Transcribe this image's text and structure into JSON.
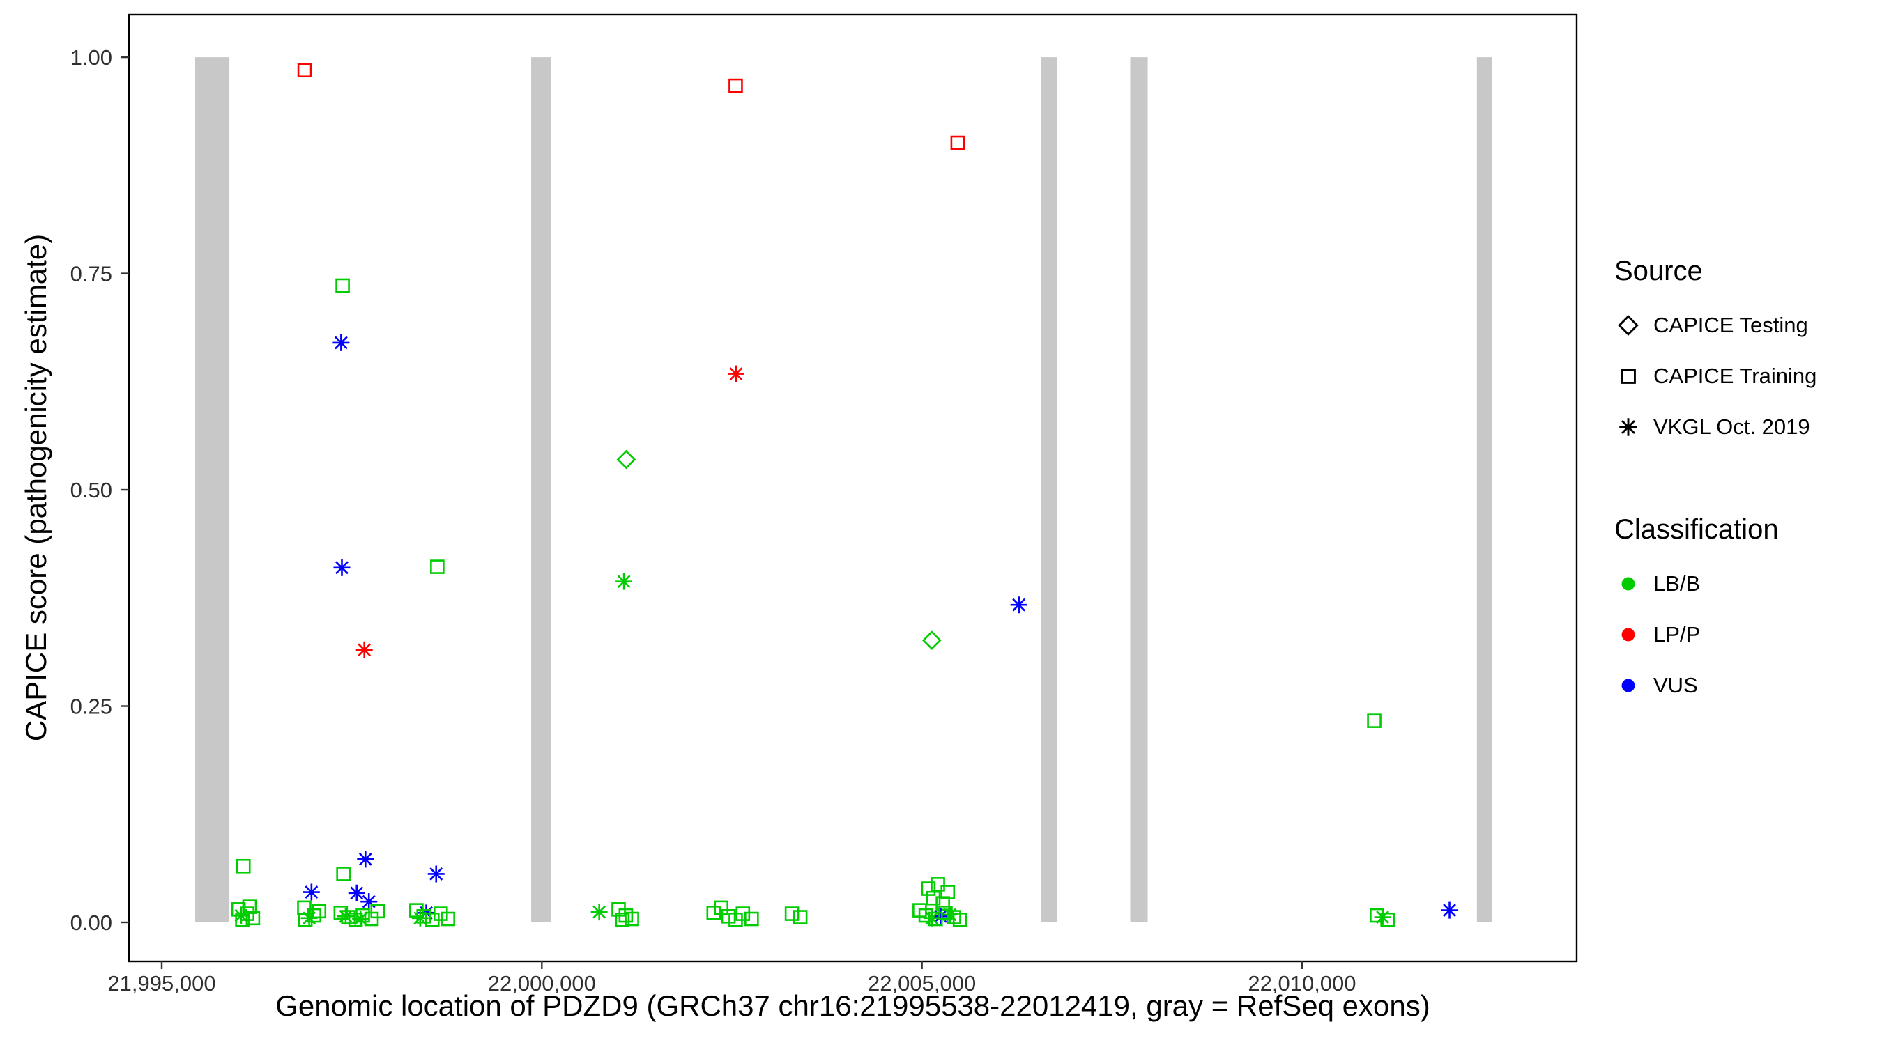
{
  "chart_data": {
    "type": "scatter",
    "title": "",
    "xlabel": "Genomic location of PDZD9 (GRCh37 chr16:21995538-22012419, gray = RefSeq exons)",
    "ylabel": "CAPICE score (pathogenicity estimate)",
    "xlim": [
      21994569,
      22013613
    ],
    "ylim": [
      -0.0451,
      1.0492
    ],
    "grid": false,
    "legend_position": "right",
    "exon_color": "#C8C8C8",
    "x_ticks": [
      {
        "value": 21995000,
        "label": "21,995,000"
      },
      {
        "value": 22000000,
        "label": "22,000,000"
      },
      {
        "value": 22005000,
        "label": "22,005,000"
      },
      {
        "value": 22010000,
        "label": "22,010,000"
      }
    ],
    "y_ticks": [
      {
        "value": 0.0,
        "label": "0.00"
      },
      {
        "value": 0.25,
        "label": "0.25"
      },
      {
        "value": 0.5,
        "label": "0.50"
      },
      {
        "value": 0.75,
        "label": "0.75"
      },
      {
        "value": 1.0,
        "label": "1.00"
      }
    ],
    "exons": [
      {
        "start": 21995440,
        "end": 21995890
      },
      {
        "start": 21999860,
        "end": 22000120
      },
      {
        "start": 22006570,
        "end": 22006780
      },
      {
        "start": 22007740,
        "end": 22007970
      },
      {
        "start": 22012300,
        "end": 22012500
      }
    ],
    "legend": {
      "source_title": "Source",
      "classification_title": "Classification"
    },
    "sources": [
      {
        "id": "testing",
        "label": "CAPICE Testing",
        "shape": "diamond"
      },
      {
        "id": "training",
        "label": "CAPICE Training",
        "shape": "square"
      },
      {
        "id": "vkgl",
        "label": "VKGL Oct. 2019",
        "shape": "asterisk"
      }
    ],
    "classifications": [
      {
        "id": "LB/B",
        "label": "LB/B",
        "color": "#00CC00"
      },
      {
        "id": "LP/P",
        "label": "LP/P",
        "color": "#FF0000"
      },
      {
        "id": "VUS",
        "label": "VUS",
        "color": "#0000FF"
      }
    ],
    "points": [
      {
        "x": 21996880,
        "y": 0.985,
        "source": "training",
        "class": "LP/P"
      },
      {
        "x": 22002550,
        "y": 0.967,
        "source": "training",
        "class": "LP/P"
      },
      {
        "x": 22005470,
        "y": 0.901,
        "source": "training",
        "class": "LP/P"
      },
      {
        "x": 21997380,
        "y": 0.736,
        "source": "training",
        "class": "LB/B"
      },
      {
        "x": 21997360,
        "y": 0.67,
        "source": "vkgl",
        "class": "VUS"
      },
      {
        "x": 22002555,
        "y": 0.634,
        "source": "vkgl",
        "class": "LP/P"
      },
      {
        "x": 22001110,
        "y": 0.535,
        "source": "testing",
        "class": "LB/B"
      },
      {
        "x": 21997370,
        "y": 0.41,
        "source": "vkgl",
        "class": "VUS"
      },
      {
        "x": 21998625,
        "y": 0.411,
        "source": "training",
        "class": "LB/B"
      },
      {
        "x": 22001080,
        "y": 0.394,
        "source": "vkgl",
        "class": "LB/B"
      },
      {
        "x": 21997665,
        "y": 0.315,
        "source": "vkgl",
        "class": "LP/P"
      },
      {
        "x": 22005130,
        "y": 0.326,
        "source": "testing",
        "class": "LB/B"
      },
      {
        "x": 22006275,
        "y": 0.367,
        "source": "vkgl",
        "class": "VUS"
      },
      {
        "x": 22010950,
        "y": 0.233,
        "source": "training",
        "class": "LB/B"
      },
      {
        "x": 22011940,
        "y": 0.014,
        "source": "vkgl",
        "class": "VUS"
      },
      {
        "x": 21996075,
        "y": 0.065,
        "source": "training",
        "class": "LB/B"
      },
      {
        "x": 21996010,
        "y": 0.015,
        "source": "training",
        "class": "LB/B"
      },
      {
        "x": 21996125,
        "y": 0.01,
        "source": "training",
        "class": "LB/B"
      },
      {
        "x": 21996200,
        "y": 0.005,
        "source": "training",
        "class": "LB/B"
      },
      {
        "x": 21996060,
        "y": 0.003,
        "source": "training",
        "class": "LB/B"
      },
      {
        "x": 21996155,
        "y": 0.018,
        "source": "training",
        "class": "LB/B"
      },
      {
        "x": 21996045,
        "y": 0.008,
        "source": "vkgl",
        "class": "LB/B"
      },
      {
        "x": 21996970,
        "y": 0.035,
        "source": "vkgl",
        "class": "VUS"
      },
      {
        "x": 21996875,
        "y": 0.017,
        "source": "training",
        "class": "LB/B"
      },
      {
        "x": 21997005,
        "y": 0.008,
        "source": "training",
        "class": "LB/B"
      },
      {
        "x": 21996890,
        "y": 0.003,
        "source": "training",
        "class": "LB/B"
      },
      {
        "x": 21997070,
        "y": 0.013,
        "source": "training",
        "class": "LB/B"
      },
      {
        "x": 21996940,
        "y": 0.005,
        "source": "vkgl",
        "class": "LB/B"
      },
      {
        "x": 21997390,
        "y": 0.056,
        "source": "training",
        "class": "LB/B"
      },
      {
        "x": 21997680,
        "y": 0.073,
        "source": "vkgl",
        "class": "VUS"
      },
      {
        "x": 21997565,
        "y": 0.034,
        "source": "vkgl",
        "class": "VUS"
      },
      {
        "x": 21997725,
        "y": 0.024,
        "source": "vkgl",
        "class": "VUS"
      },
      {
        "x": 21997355,
        "y": 0.011,
        "source": "training",
        "class": "LB/B"
      },
      {
        "x": 21997455,
        "y": 0.006,
        "source": "training",
        "class": "LB/B"
      },
      {
        "x": 21997550,
        "y": 0.003,
        "source": "training",
        "class": "LB/B"
      },
      {
        "x": 21997645,
        "y": 0.008,
        "source": "training",
        "class": "LB/B"
      },
      {
        "x": 21997760,
        "y": 0.004,
        "source": "training",
        "class": "LB/B"
      },
      {
        "x": 21997840,
        "y": 0.013,
        "source": "training",
        "class": "LB/B"
      },
      {
        "x": 21997420,
        "y": 0.007,
        "source": "vkgl",
        "class": "LB/B"
      },
      {
        "x": 21997615,
        "y": 0.004,
        "source": "vkgl",
        "class": "LB/B"
      },
      {
        "x": 21998610,
        "y": 0.056,
        "source": "vkgl",
        "class": "VUS"
      },
      {
        "x": 21998480,
        "y": 0.011,
        "source": "vkgl",
        "class": "VUS"
      },
      {
        "x": 21998350,
        "y": 0.014,
        "source": "training",
        "class": "LB/B"
      },
      {
        "x": 21998445,
        "y": 0.007,
        "source": "training",
        "class": "LB/B"
      },
      {
        "x": 21998560,
        "y": 0.003,
        "source": "training",
        "class": "LB/B"
      },
      {
        "x": 21998670,
        "y": 0.01,
        "source": "training",
        "class": "LB/B"
      },
      {
        "x": 21998765,
        "y": 0.004,
        "source": "training",
        "class": "LB/B"
      },
      {
        "x": 21998400,
        "y": 0.005,
        "source": "vkgl",
        "class": "LB/B"
      },
      {
        "x": 22000755,
        "y": 0.012,
        "source": "vkgl",
        "class": "LB/B"
      },
      {
        "x": 22001010,
        "y": 0.015,
        "source": "training",
        "class": "LB/B"
      },
      {
        "x": 22001105,
        "y": 0.008,
        "source": "training",
        "class": "LB/B"
      },
      {
        "x": 22001185,
        "y": 0.004,
        "source": "training",
        "class": "LB/B"
      },
      {
        "x": 22001060,
        "y": 0.003,
        "source": "training",
        "class": "LB/B"
      },
      {
        "x": 22002260,
        "y": 0.011,
        "source": "training",
        "class": "LB/B"
      },
      {
        "x": 22002360,
        "y": 0.017,
        "source": "training",
        "class": "LB/B"
      },
      {
        "x": 22002455,
        "y": 0.007,
        "source": "training",
        "class": "LB/B"
      },
      {
        "x": 22002550,
        "y": 0.003,
        "source": "training",
        "class": "LB/B"
      },
      {
        "x": 22002645,
        "y": 0.01,
        "source": "training",
        "class": "LB/B"
      },
      {
        "x": 22002760,
        "y": 0.004,
        "source": "training",
        "class": "LB/B"
      },
      {
        "x": 22003290,
        "y": 0.01,
        "source": "training",
        "class": "LB/B"
      },
      {
        "x": 22003400,
        "y": 0.006,
        "source": "training",
        "class": "LB/B"
      },
      {
        "x": 22005085,
        "y": 0.039,
        "source": "training",
        "class": "LB/B"
      },
      {
        "x": 22005210,
        "y": 0.044,
        "source": "training",
        "class": "LB/B"
      },
      {
        "x": 22005340,
        "y": 0.035,
        "source": "training",
        "class": "LB/B"
      },
      {
        "x": 22005150,
        "y": 0.028,
        "source": "training",
        "class": "LB/B"
      },
      {
        "x": 22005275,
        "y": 0.022,
        "source": "training",
        "class": "LB/B"
      },
      {
        "x": 22005245,
        "y": 0.007,
        "source": "vkgl",
        "class": "VUS"
      },
      {
        "x": 22004970,
        "y": 0.014,
        "source": "training",
        "class": "LB/B"
      },
      {
        "x": 22005050,
        "y": 0.008,
        "source": "training",
        "class": "LB/B"
      },
      {
        "x": 22005180,
        "y": 0.004,
        "source": "training",
        "class": "LB/B"
      },
      {
        "x": 22005310,
        "y": 0.011,
        "source": "training",
        "class": "LB/B"
      },
      {
        "x": 22005420,
        "y": 0.006,
        "source": "training",
        "class": "LB/B"
      },
      {
        "x": 22005500,
        "y": 0.003,
        "source": "training",
        "class": "LB/B"
      },
      {
        "x": 22005130,
        "y": 0.005,
        "source": "vkgl",
        "class": "LB/B"
      },
      {
        "x": 22005370,
        "y": 0.009,
        "source": "vkgl",
        "class": "LB/B"
      },
      {
        "x": 22010985,
        "y": 0.008,
        "source": "training",
        "class": "LB/B"
      },
      {
        "x": 22011060,
        "y": 0.006,
        "source": "vkgl",
        "class": "LB/B"
      },
      {
        "x": 22011125,
        "y": 0.003,
        "source": "training",
        "class": "LB/B"
      }
    ]
  }
}
